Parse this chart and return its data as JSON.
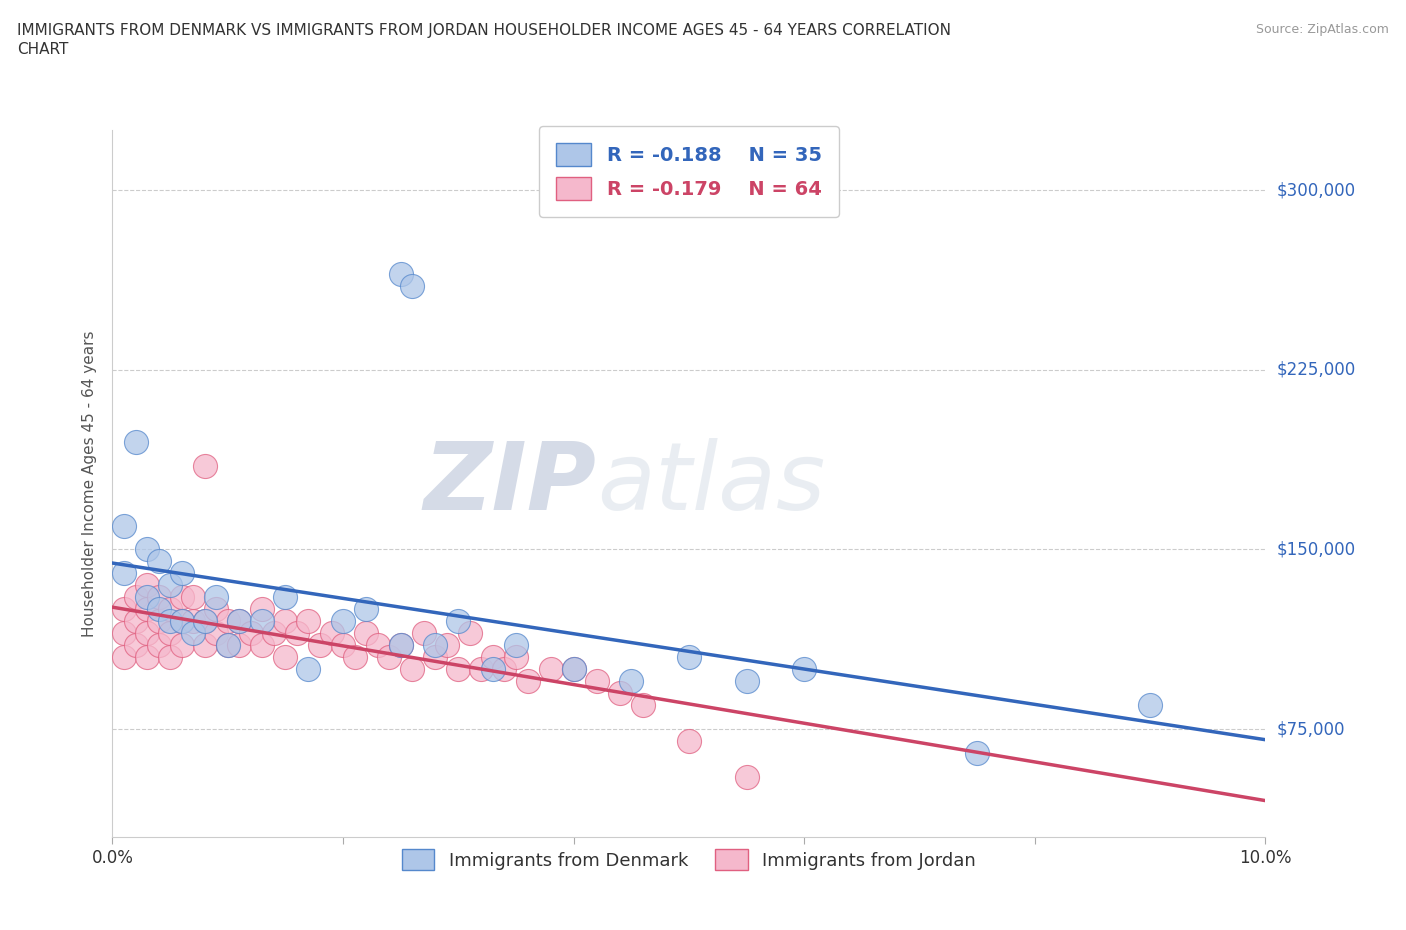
{
  "title": "IMMIGRANTS FROM DENMARK VS IMMIGRANTS FROM JORDAN HOUSEHOLDER INCOME AGES 45 - 64 YEARS CORRELATION\nCHART",
  "source_text": "Source: ZipAtlas.com",
  "ylabel": "Householder Income Ages 45 - 64 years",
  "xlim": [
    0.0,
    0.1
  ],
  "ylim": [
    30000,
    325000
  ],
  "yticks": [
    75000,
    150000,
    225000,
    300000
  ],
  "ytick_labels": [
    "$75,000",
    "$150,000",
    "$225,000",
    "$300,000"
  ],
  "xticks": [
    0.0,
    0.02,
    0.04,
    0.06,
    0.08,
    0.1
  ],
  "xtick_labels": [
    "0.0%",
    "",
    "",
    "",
    "",
    "10.0%"
  ],
  "denmark_color": "#aec6e8",
  "jordan_color": "#f5b8cc",
  "denmark_edge_color": "#5588cc",
  "jordan_edge_color": "#e06080",
  "denmark_line_color": "#3366bb",
  "jordan_line_color": "#cc4466",
  "denmark_R": -0.188,
  "denmark_N": 35,
  "jordan_R": -0.179,
  "jordan_N": 64,
  "watermark_zip": "ZIP",
  "watermark_atlas": "atlas",
  "denmark_x": [
    0.001,
    0.001,
    0.002,
    0.003,
    0.003,
    0.004,
    0.004,
    0.005,
    0.005,
    0.006,
    0.006,
    0.007,
    0.008,
    0.009,
    0.01,
    0.011,
    0.013,
    0.015,
    0.017,
    0.02,
    0.022,
    0.025,
    0.028,
    0.03,
    0.033,
    0.035,
    0.04,
    0.045,
    0.05,
    0.055,
    0.06,
    0.025,
    0.026,
    0.075,
    0.09
  ],
  "denmark_y": [
    140000,
    160000,
    195000,
    130000,
    150000,
    125000,
    145000,
    120000,
    135000,
    120000,
    140000,
    115000,
    120000,
    130000,
    110000,
    120000,
    120000,
    130000,
    100000,
    120000,
    125000,
    110000,
    110000,
    120000,
    100000,
    110000,
    100000,
    95000,
    105000,
    95000,
    100000,
    265000,
    260000,
    65000,
    85000
  ],
  "jordan_x": [
    0.001,
    0.001,
    0.001,
    0.002,
    0.002,
    0.002,
    0.003,
    0.003,
    0.003,
    0.003,
    0.004,
    0.004,
    0.004,
    0.005,
    0.005,
    0.005,
    0.006,
    0.006,
    0.006,
    0.007,
    0.007,
    0.008,
    0.008,
    0.008,
    0.009,
    0.009,
    0.01,
    0.01,
    0.011,
    0.011,
    0.012,
    0.013,
    0.013,
    0.014,
    0.015,
    0.015,
    0.016,
    0.017,
    0.018,
    0.019,
    0.02,
    0.021,
    0.022,
    0.023,
    0.024,
    0.025,
    0.026,
    0.027,
    0.028,
    0.029,
    0.03,
    0.031,
    0.032,
    0.033,
    0.034,
    0.035,
    0.036,
    0.038,
    0.04,
    0.042,
    0.044,
    0.046,
    0.05,
    0.055
  ],
  "jordan_y": [
    115000,
    125000,
    105000,
    120000,
    110000,
    130000,
    115000,
    125000,
    105000,
    135000,
    120000,
    130000,
    110000,
    115000,
    125000,
    105000,
    120000,
    130000,
    110000,
    120000,
    130000,
    110000,
    185000,
    120000,
    115000,
    125000,
    110000,
    120000,
    110000,
    120000,
    115000,
    125000,
    110000,
    115000,
    120000,
    105000,
    115000,
    120000,
    110000,
    115000,
    110000,
    105000,
    115000,
    110000,
    105000,
    110000,
    100000,
    115000,
    105000,
    110000,
    100000,
    115000,
    100000,
    105000,
    100000,
    105000,
    95000,
    100000,
    100000,
    95000,
    90000,
    85000,
    70000,
    55000
  ]
}
